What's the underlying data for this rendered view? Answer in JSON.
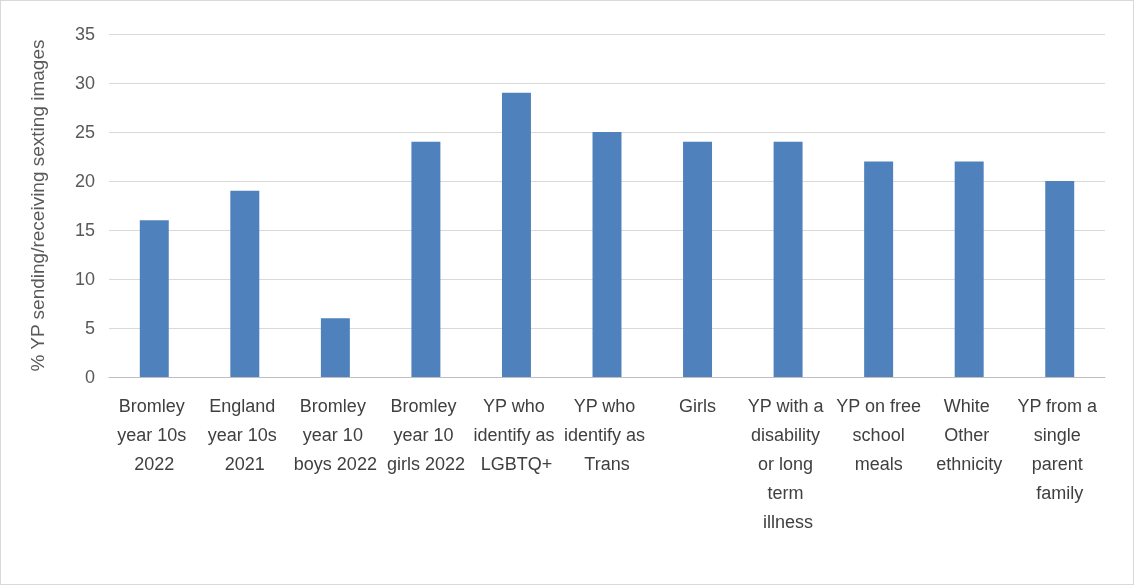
{
  "chart_data": {
    "type": "bar",
    "ylabel": "% YP sending/receiving sexting images",
    "categories": [
      "Bromley year 10s 2022",
      "England year 10s 2021",
      "Bromley year 10 boys 2022",
      "Bromley year 10 girls 2022",
      "YP who identify as LGBTQ+",
      "YP who identify as Trans",
      "Girls",
      "YP with a disability or long term illness",
      "YP on free school meals",
      "White Other ethnicity",
      "YP from a single parent family"
    ],
    "values": [
      16,
      19,
      6,
      24,
      29,
      25,
      24,
      24,
      22,
      22,
      20
    ],
    "color": "#4f81bd",
    "ylim": [
      0,
      35
    ],
    "yticks": [
      0,
      5,
      10,
      15,
      20,
      25,
      30,
      35
    ],
    "grid": "y"
  }
}
